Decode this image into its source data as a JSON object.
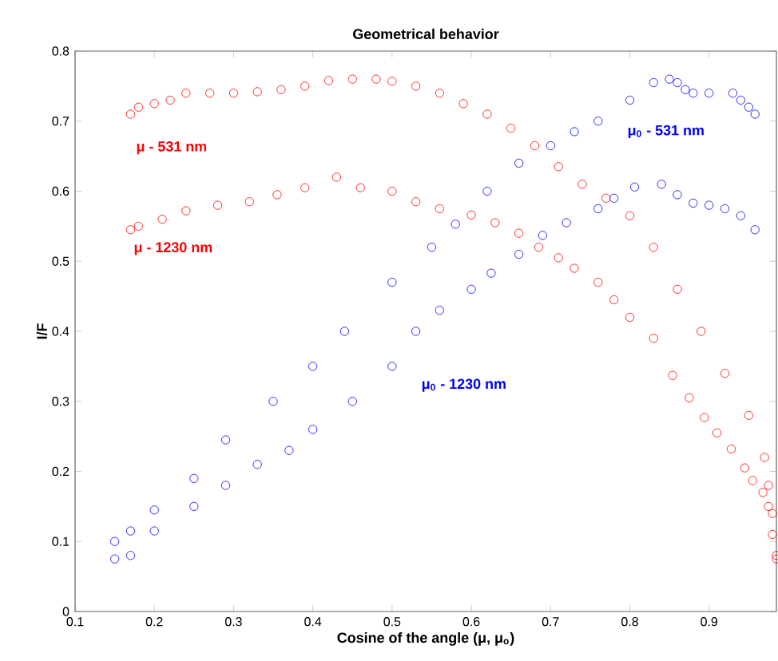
{
  "chart_data": {
    "type": "scatter",
    "title": "Geometrical behavior",
    "xlabel": "Cosine of the angle (μ, μ$_{o}$)",
    "ylabel": "I/F",
    "xlim": [
      0.1,
      0.985
    ],
    "ylim": [
      0,
      0.8
    ],
    "xticks": [
      0.1,
      0.2,
      0.3,
      0.4,
      0.5,
      0.6,
      0.7,
      0.8,
      0.9
    ],
    "yticks": [
      0,
      0.1,
      0.2,
      0.3,
      0.4,
      0.5,
      0.6,
      0.7,
      0.8
    ],
    "marker": "circle",
    "series": [
      {
        "name": "μ - 531 nm",
        "color": "#ff0000",
        "x": [
          0.17,
          0.18,
          0.2,
          0.22,
          0.24,
          0.27,
          0.3,
          0.33,
          0.36,
          0.39,
          0.42,
          0.45,
          0.48,
          0.5,
          0.53,
          0.56,
          0.59,
          0.62,
          0.65,
          0.68,
          0.71,
          0.74,
          0.77,
          0.8,
          0.83,
          0.86,
          0.89,
          0.92,
          0.95,
          0.97,
          0.975,
          0.98,
          0.985
        ],
        "values": [
          0.71,
          0.72,
          0.725,
          0.73,
          0.74,
          0.74,
          0.74,
          0.742,
          0.745,
          0.75,
          0.758,
          0.76,
          0.76,
          0.757,
          0.75,
          0.74,
          0.725,
          0.71,
          0.69,
          0.665,
          0.635,
          0.61,
          0.59,
          0.565,
          0.52,
          0.46,
          0.4,
          0.34,
          0.28,
          0.22,
          0.18,
          0.14,
          0.08
        ]
      },
      {
        "name": "μ - 1230 nm",
        "color": "#ff0000",
        "x": [
          0.17,
          0.18,
          0.21,
          0.24,
          0.28,
          0.32,
          0.355,
          0.39,
          0.43,
          0.46,
          0.5,
          0.53,
          0.56,
          0.6,
          0.63,
          0.66,
          0.685,
          0.71,
          0.73,
          0.76,
          0.78,
          0.8,
          0.83,
          0.854,
          0.875,
          0.894,
          0.91,
          0.928,
          0.945,
          0.955,
          0.968,
          0.975,
          0.98,
          0.985
        ],
        "values": [
          0.545,
          0.55,
          0.56,
          0.572,
          0.58,
          0.585,
          0.595,
          0.605,
          0.62,
          0.605,
          0.6,
          0.585,
          0.575,
          0.566,
          0.555,
          0.54,
          0.52,
          0.505,
          0.49,
          0.47,
          0.445,
          0.42,
          0.39,
          0.337,
          0.305,
          0.277,
          0.255,
          0.232,
          0.205,
          0.187,
          0.17,
          0.15,
          0.11,
          0.075
        ]
      },
      {
        "name": "μ$_{0}$ - 531 nm",
        "color": "#0000ff",
        "x": [
          0.15,
          0.17,
          0.2,
          0.25,
          0.29,
          0.35,
          0.4,
          0.44,
          0.5,
          0.55,
          0.58,
          0.62,
          0.66,
          0.7,
          0.73,
          0.76,
          0.8,
          0.83,
          0.85,
          0.86,
          0.87,
          0.88,
          0.9,
          0.93,
          0.94,
          0.95,
          0.958
        ],
        "values": [
          0.1,
          0.115,
          0.145,
          0.19,
          0.245,
          0.3,
          0.35,
          0.4,
          0.47,
          0.52,
          0.553,
          0.6,
          0.64,
          0.665,
          0.685,
          0.7,
          0.73,
          0.755,
          0.76,
          0.755,
          0.745,
          0.74,
          0.74,
          0.74,
          0.73,
          0.72,
          0.71
        ]
      },
      {
        "name": "μ$_{0}$ - 1230 nm",
        "color": "#0000ff",
        "x": [
          0.15,
          0.17,
          0.2,
          0.25,
          0.29,
          0.33,
          0.37,
          0.4,
          0.45,
          0.5,
          0.53,
          0.56,
          0.6,
          0.625,
          0.66,
          0.69,
          0.72,
          0.76,
          0.78,
          0.806,
          0.84,
          0.86,
          0.88,
          0.9,
          0.92,
          0.94,
          0.958
        ],
        "values": [
          0.075,
          0.08,
          0.115,
          0.15,
          0.18,
          0.21,
          0.23,
          0.26,
          0.3,
          0.35,
          0.4,
          0.43,
          0.46,
          0.483,
          0.51,
          0.537,
          0.555,
          0.575,
          0.59,
          0.606,
          0.61,
          0.595,
          0.583,
          0.58,
          0.575,
          0.565,
          0.545
        ]
      }
    ]
  }
}
